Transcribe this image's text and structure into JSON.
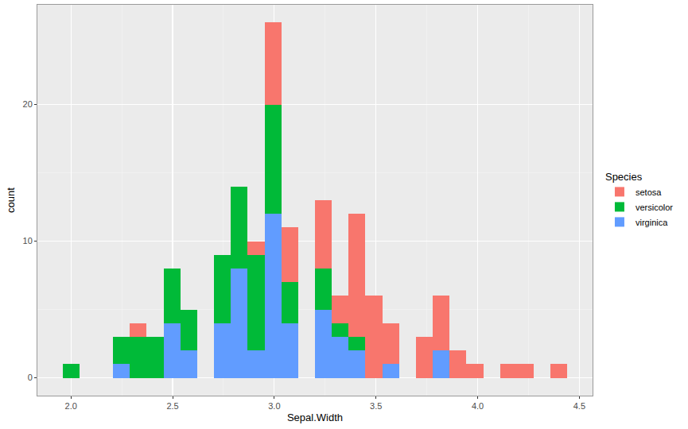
{
  "chart_data": {
    "type": "histogram",
    "stacked": true,
    "x_label": "Sepal.Width",
    "y_label": "count",
    "legend_title": "Species",
    "legend": "right",
    "grid": true,
    "bins": [
      1.959,
      2.041,
      2.124,
      2.207,
      2.29,
      2.372,
      2.455,
      2.538,
      2.621,
      2.703,
      2.786,
      2.869,
      2.952,
      3.034,
      3.117,
      3.2,
      3.283,
      3.366,
      3.448,
      3.531,
      3.614,
      3.697,
      3.779,
      3.862,
      3.945,
      4.028,
      4.11,
      4.193,
      4.276,
      4.359,
      4.441
    ],
    "series": [
      {
        "name": "setosa",
        "color": "#F8766D",
        "values": [
          0,
          0,
          0,
          0,
          1,
          0,
          0,
          0,
          0,
          0,
          0,
          1,
          6,
          4,
          0,
          5,
          2,
          9,
          6,
          3,
          0,
          3,
          4,
          2,
          1,
          0,
          1,
          1,
          0,
          1
        ]
      },
      {
        "name": "versicolor",
        "color": "#00BA38",
        "values": [
          1,
          0,
          0,
          2,
          3,
          3,
          4,
          3,
          0,
          5,
          6,
          7,
          8,
          3,
          0,
          3,
          1,
          1,
          0,
          0,
          0,
          0,
          0,
          0,
          0,
          0,
          0,
          0,
          0,
          0
        ]
      },
      {
        "name": "virginica",
        "color": "#619CFF",
        "values": [
          0,
          0,
          0,
          1,
          0,
          0,
          4,
          2,
          0,
          4,
          8,
          2,
          12,
          4,
          0,
          5,
          3,
          2,
          0,
          1,
          0,
          0,
          2,
          0,
          0,
          0,
          0,
          0,
          0,
          0
        ]
      }
    ],
    "xlim": [
      1.835,
      4.565
    ],
    "xticks": [
      {
        "value": 2.0,
        "label": "2.0"
      },
      {
        "value": 2.5,
        "label": "2.5"
      },
      {
        "value": 3.0,
        "label": "3.0"
      },
      {
        "value": 3.5,
        "label": "3.5"
      },
      {
        "value": 4.0,
        "label": "4.0"
      },
      {
        "value": 4.5,
        "label": "4.5"
      }
    ],
    "ylim": [
      -1.3,
      27.3
    ],
    "yticks": [
      0,
      10,
      20
    ]
  }
}
